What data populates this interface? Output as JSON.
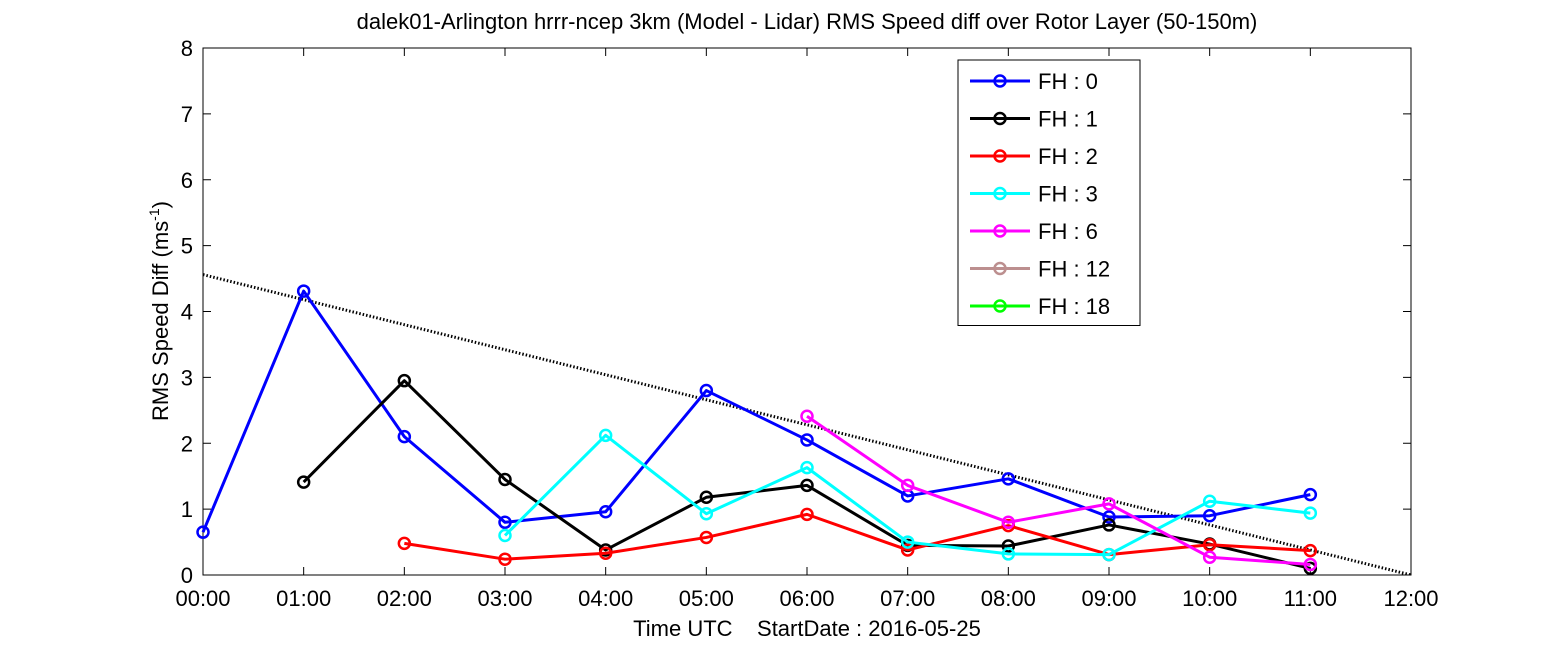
{
  "chart_data": {
    "type": "line",
    "title": "dalek01-Arlington hrrr-ncep 3km (Model - Lidar) RMS Speed diff over Rotor Layer (50-150m)",
    "xlabel": "Time UTC    StartDate : 2016-05-25",
    "ylabel": "RMS Speed Diff (ms",
    "ylabel_sup": "-1",
    "ylabel_close": ")",
    "xlim": [
      0,
      12
    ],
    "ylim": [
      0,
      8
    ],
    "x_ticks": [
      0,
      1,
      2,
      3,
      4,
      5,
      6,
      7,
      8,
      9,
      10,
      11,
      12
    ],
    "x_tick_labels": [
      "00:00",
      "01:00",
      "02:00",
      "03:00",
      "04:00",
      "05:00",
      "06:00",
      "07:00",
      "08:00",
      "09:00",
      "10:00",
      "11:00",
      "12:00"
    ],
    "y_ticks": [
      0,
      1,
      2,
      3,
      4,
      5,
      6,
      7,
      8
    ],
    "y_tick_labels": [
      "0",
      "1",
      "2",
      "3",
      "4",
      "5",
      "6",
      "7",
      "8"
    ],
    "grid": false,
    "legend_position": "top-right",
    "series": [
      {
        "name": "FH : 0",
        "color": "#0000ff",
        "x": [
          0,
          1,
          2,
          3,
          4,
          5,
          6,
          7,
          8,
          9,
          10,
          11
        ],
        "y": [
          0.65,
          4.31,
          2.1,
          0.8,
          0.96,
          2.8,
          2.05,
          1.2,
          1.46,
          0.88,
          0.9,
          1.22
        ]
      },
      {
        "name": "FH : 1",
        "color": "#000000",
        "x": [
          1,
          2,
          3,
          4,
          5,
          6,
          7,
          8,
          9,
          10,
          11
        ],
        "y": [
          1.41,
          2.95,
          1.45,
          0.38,
          1.18,
          1.36,
          0.45,
          0.44,
          0.76,
          0.47,
          0.1
        ]
      },
      {
        "name": "FH : 2",
        "color": "#ff0000",
        "x": [
          2,
          3,
          4,
          5,
          6,
          7,
          8,
          9,
          10,
          11
        ],
        "y": [
          0.48,
          0.24,
          0.33,
          0.57,
          0.92,
          0.38,
          0.75,
          0.31,
          0.46,
          0.37
        ]
      },
      {
        "name": "FH : 3",
        "color": "#00ffff",
        "x": [
          3,
          4,
          5,
          6,
          7,
          8,
          9,
          10,
          11
        ],
        "y": [
          0.6,
          2.12,
          0.93,
          1.63,
          0.5,
          0.32,
          0.31,
          1.12,
          0.94
        ]
      },
      {
        "name": "FH : 6",
        "color": "#ff00ff",
        "x": [
          6,
          7,
          8,
          9,
          10,
          11
        ],
        "y": [
          2.41,
          1.36,
          0.8,
          1.08,
          0.27,
          0.16
        ]
      },
      {
        "name": "FH : 12",
        "color": "#bc8f8f",
        "x": [],
        "y": []
      },
      {
        "name": "FH : 18",
        "color": "#00ff00",
        "x": [],
        "y": []
      }
    ],
    "trend_line": {
      "style": "dotted",
      "color": "#000000",
      "x": [
        0,
        12
      ],
      "y": [
        4.56,
        0
      ]
    }
  }
}
